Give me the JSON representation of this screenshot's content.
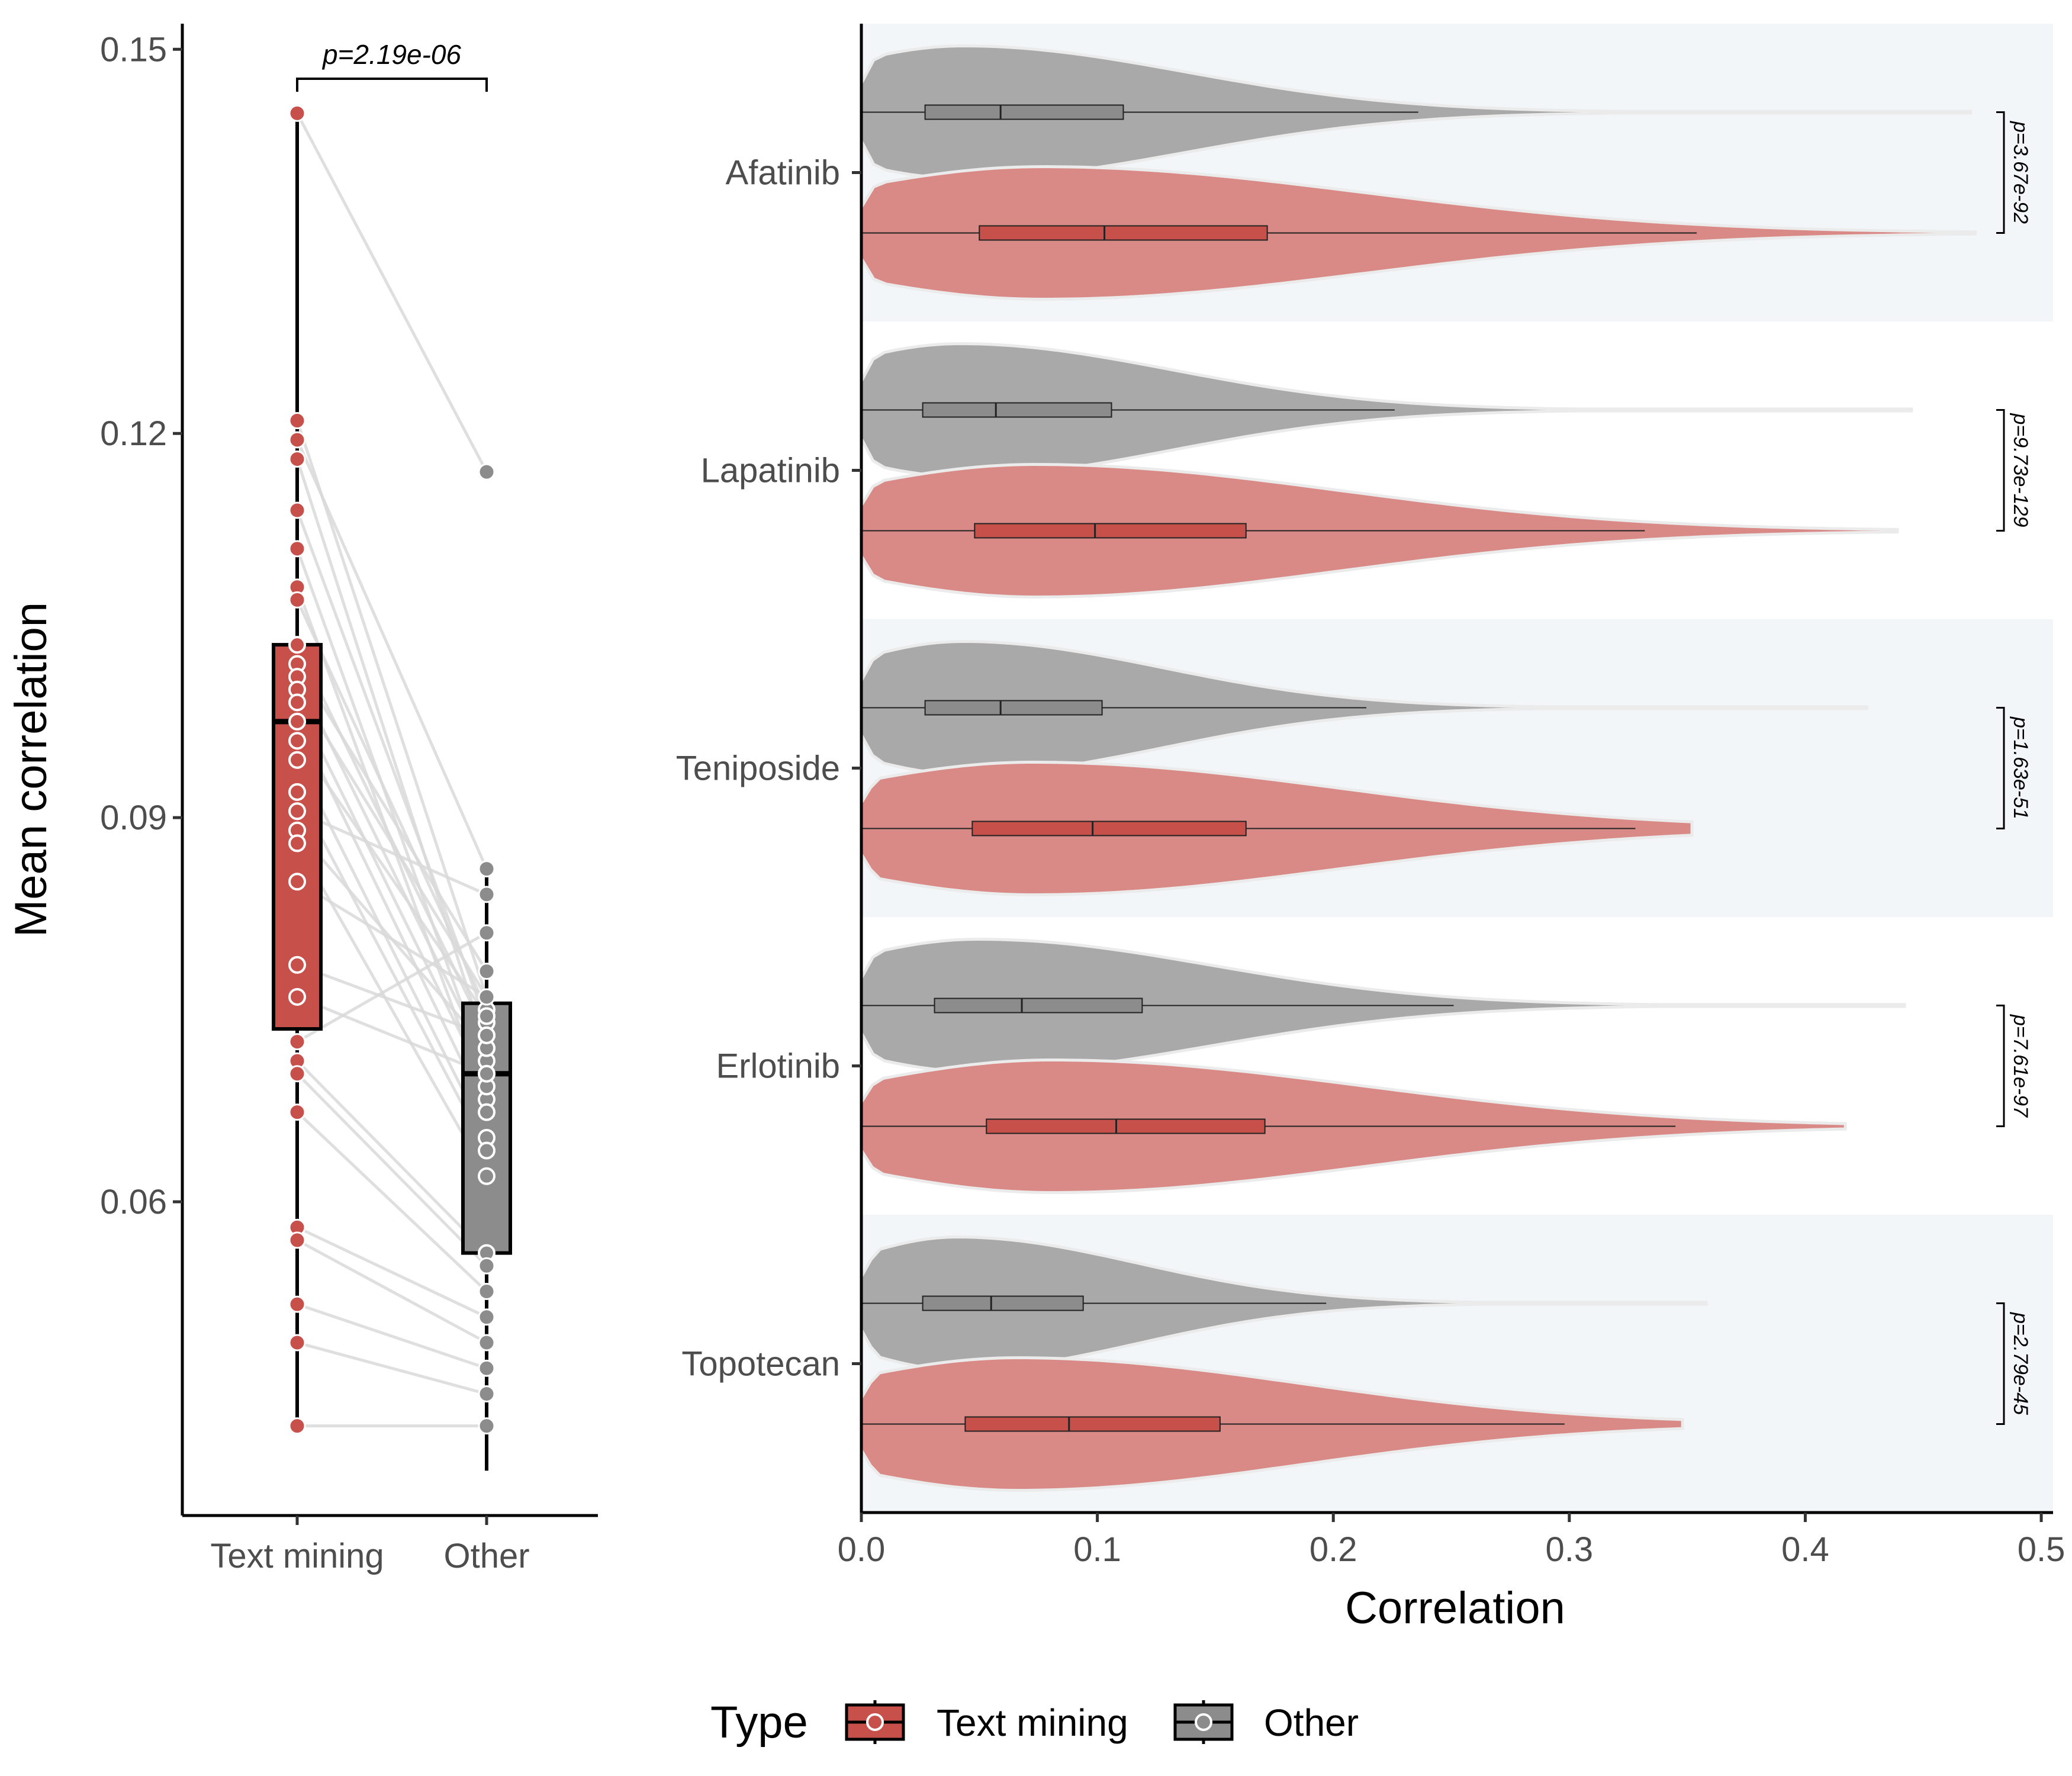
{
  "colors": {
    "text_mining": "#C8504A",
    "text_mining_violin": "#D98A86",
    "other": "#8C8C8C",
    "other_violin": "#A9A9AA",
    "panel_band": "#F3F6F9",
    "pair_line": "#D9D9D9"
  },
  "chart_data": [
    {
      "type": "box",
      "ylabel": "Mean correlation",
      "xlabel": "",
      "categories": [
        "Text mining",
        "Other"
      ],
      "ylim": [
        0.0355,
        0.152
      ],
      "y_ticks": [
        0.06,
        0.09,
        0.12,
        0.15
      ],
      "y_tick_labels": [
        "0.06",
        "0.09",
        "0.12",
        "0.15"
      ],
      "p_value_label": "p=2.19e-06",
      "boxes": [
        {
          "name": "Text mining",
          "min": 0.0425,
          "q1": 0.0735,
          "median": 0.0975,
          "q3": 0.1035,
          "max": 0.145
        },
        {
          "name": "Other",
          "min": 0.039,
          "q1": 0.056,
          "median": 0.07,
          "q3": 0.0755,
          "max": 0.086
        }
      ],
      "paired_points": [
        [
          0.145,
          0.117
        ],
        [
          0.121,
          0.076
        ],
        [
          0.1195,
          0.086
        ],
        [
          0.118,
          0.072
        ],
        [
          0.114,
          0.074
        ],
        [
          0.111,
          0.07
        ],
        [
          0.108,
          0.068
        ],
        [
          0.107,
          0.075
        ],
        [
          0.1035,
          0.073
        ],
        [
          0.102,
          0.078
        ],
        [
          0.101,
          0.071
        ],
        [
          0.1,
          0.076
        ],
        [
          0.099,
          0.069
        ],
        [
          0.0975,
          0.067
        ],
        [
          0.096,
          0.0745
        ],
        [
          0.0945,
          0.065
        ],
        [
          0.092,
          0.064
        ],
        [
          0.0905,
          0.084
        ],
        [
          0.089,
          0.072
        ],
        [
          0.088,
          0.062
        ],
        [
          0.085,
          0.076
        ],
        [
          0.0785,
          0.073
        ],
        [
          0.076,
          0.07
        ],
        [
          0.0725,
          0.081
        ],
        [
          0.071,
          0.056
        ],
        [
          0.07,
          0.055
        ],
        [
          0.067,
          0.053
        ],
        [
          0.058,
          0.051
        ],
        [
          0.057,
          0.049
        ],
        [
          0.052,
          0.047
        ],
        [
          0.049,
          0.045
        ],
        [
          0.0425,
          0.0425
        ]
      ]
    },
    {
      "type": "violin",
      "xlabel": "Correlation",
      "ylabel": "",
      "xlim": [
        0.0,
        0.505
      ],
      "x_ticks": [
        0.0,
        0.1,
        0.2,
        0.3,
        0.4,
        0.5
      ],
      "x_tick_labels": [
        "0.0",
        "0.1",
        "0.2",
        "0.3",
        "0.4",
        "0.5"
      ],
      "groups": [
        {
          "drug": "Afatinib",
          "p_value_label": "p=3.67e-92",
          "other": {
            "max": 0.47,
            "q1": 0.027,
            "median": 0.059,
            "q3": 0.111,
            "whisker": 0.236
          },
          "text_mining": {
            "max": 0.472,
            "q1": 0.05,
            "median": 0.103,
            "q3": 0.172,
            "whisker": 0.354
          }
        },
        {
          "drug": "Lapatinib",
          "p_value_label": "p=9.73e-129",
          "other": {
            "max": 0.445,
            "q1": 0.026,
            "median": 0.057,
            "q3": 0.106,
            "whisker": 0.226
          },
          "text_mining": {
            "max": 0.439,
            "q1": 0.048,
            "median": 0.099,
            "q3": 0.163,
            "whisker": 0.332
          }
        },
        {
          "drug": "Teniposide",
          "p_value_label": "p=1.63e-51",
          "other": {
            "max": 0.426,
            "q1": 0.027,
            "median": 0.059,
            "q3": 0.102,
            "whisker": 0.214
          },
          "text_mining": {
            "max": 0.352,
            "q1": 0.047,
            "median": 0.098,
            "q3": 0.163,
            "whisker": 0.328
          }
        },
        {
          "drug": "Erlotinib",
          "p_value_label": "p=7.61e-97",
          "other": {
            "max": 0.442,
            "q1": 0.031,
            "median": 0.068,
            "q3": 0.119,
            "whisker": 0.251
          },
          "text_mining": {
            "max": 0.417,
            "q1": 0.053,
            "median": 0.108,
            "q3": 0.171,
            "whisker": 0.345
          }
        },
        {
          "drug": "Topotecan",
          "p_value_label": "p=2.79e-45",
          "other": {
            "max": 0.358,
            "q1": 0.026,
            "median": 0.055,
            "q3": 0.094,
            "whisker": 0.197
          },
          "text_mining": {
            "max": 0.348,
            "q1": 0.044,
            "median": 0.088,
            "q3": 0.152,
            "whisker": 0.298
          }
        }
      ]
    }
  ],
  "legend": {
    "title": "Type",
    "items": [
      {
        "label": "Text mining",
        "key": "text_mining"
      },
      {
        "label": "Other",
        "key": "other"
      }
    ]
  }
}
